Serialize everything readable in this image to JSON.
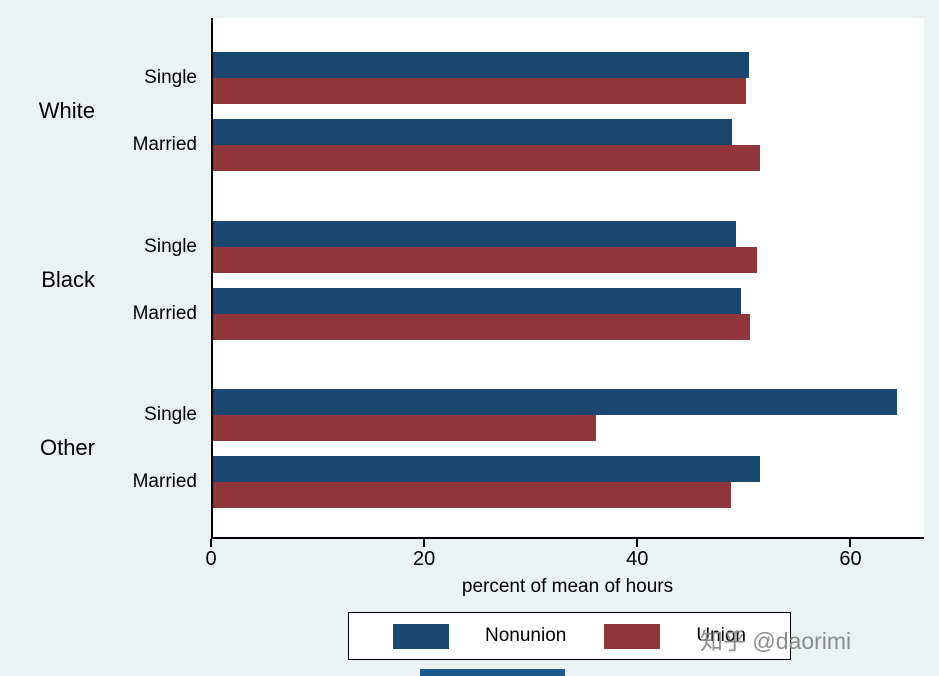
{
  "chart_data": {
    "type": "bar",
    "orientation": "horizontal",
    "title": "",
    "xlabel": "percent of mean of hours",
    "x_ticks": [
      0,
      20,
      40,
      60
    ],
    "xlim": [
      0,
      66.9
    ],
    "grid": false,
    "legend_position": "bottom",
    "series": [
      {
        "name": "Nonunion",
        "color": "#1a476f"
      },
      {
        "name": "Union",
        "color": "#90353b"
      }
    ],
    "groups": [
      {
        "label": "White",
        "subgroups": [
          {
            "label": "Single",
            "values": [
              50.3,
              50.0
            ]
          },
          {
            "label": "Married",
            "values": [
              48.7,
              51.3
            ]
          }
        ]
      },
      {
        "label": "Black",
        "subgroups": [
          {
            "label": "Single",
            "values": [
              49.1,
              51.0
            ]
          },
          {
            "label": "Married",
            "values": [
              49.5,
              50.4
            ]
          }
        ]
      },
      {
        "label": "Other",
        "subgroups": [
          {
            "label": "Single",
            "values": [
              64.2,
              35.9
            ]
          },
          {
            "label": "Married",
            "values": [
              51.3,
              48.6
            ]
          }
        ]
      }
    ]
  },
  "legend": {
    "entries": [
      {
        "label": "Nonunion"
      },
      {
        "label": "Union"
      }
    ]
  },
  "watermark": {
    "text": "知乎 @daorimi"
  },
  "colors": {
    "background": "#eaf2f3",
    "plot_background": "#ffffff",
    "nonunion": "#1a476f",
    "union": "#90353b"
  }
}
